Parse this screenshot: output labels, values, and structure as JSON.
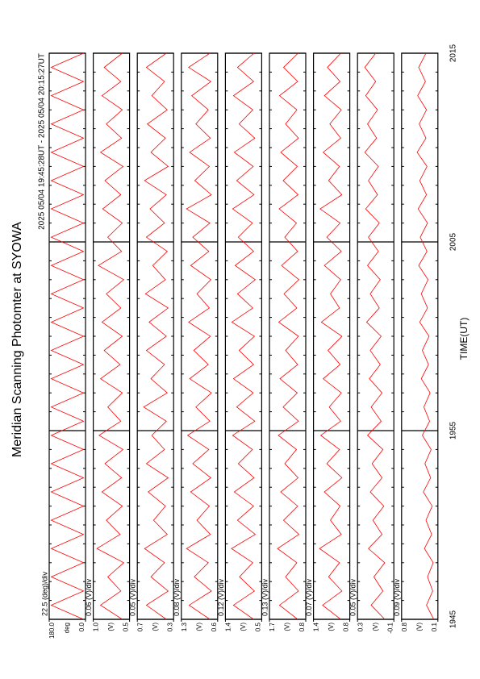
{
  "chart_data": {
    "type": "line",
    "title": "Meridian Scanning Photomter at SYOWA",
    "subtitle": "2025 05/04 19:45:28UT - 2025 05/04 20:15:27UT",
    "xlabel": "TIME(UT)",
    "xlim": [
      0,
      30
    ],
    "xticks": [
      {
        "value": 0,
        "label": "1945"
      },
      {
        "value": 10,
        "label": "1955"
      },
      {
        "value": 20,
        "label": "2005"
      },
      {
        "value": 30,
        "label": "2015"
      }
    ],
    "xminorticks": [
      0,
      1,
      2,
      3,
      4,
      5,
      6,
      7,
      8,
      9,
      10,
      11,
      12,
      13,
      14,
      15,
      16,
      17,
      18,
      19,
      20,
      21,
      22,
      23,
      24,
      25,
      26,
      27,
      28,
      29,
      30
    ],
    "x": [
      0,
      0.75,
      1.5,
      2.25,
      3,
      3.75,
      4.5,
      5.25,
      6,
      6.75,
      7.5,
      8.25,
      9,
      9.75,
      10.5,
      11.25,
      12,
      12.75,
      13.5,
      14.25,
      15,
      15.75,
      16.5,
      17.25,
      18,
      18.75,
      19.5,
      20.25,
      21,
      21.75,
      22.5,
      23.25,
      24,
      24.75,
      25.5,
      26.25,
      27,
      27.75,
      28.5,
      29.25,
      30
    ],
    "panels": [
      {
        "ylabel": "deg",
        "scale_label": "22.5 (deg)/div",
        "color": "#ff0000",
        "ylim": [
          0,
          180
        ],
        "yticks": [
          {
            "value": 0,
            "label": "0.0"
          },
          {
            "value": 180,
            "label": "180.0"
          }
        ],
        "values": [
          10,
          170,
          10,
          170,
          10,
          170,
          10,
          170,
          10,
          170,
          10,
          170,
          10,
          170,
          10,
          170,
          10,
          170,
          10,
          170,
          10,
          170,
          10,
          170,
          10,
          170,
          10,
          170,
          10,
          170,
          10,
          170,
          10,
          170,
          10,
          170,
          10,
          170,
          10,
          170,
          10
        ]
      },
      {
        "ylabel": "(V)",
        "scale_label": "0.06 (V)/div",
        "color": "#ff0000",
        "ylim": [
          0.5,
          1.0
        ],
        "yticks": [
          0.5,
          {
            "value": 1.0,
            "label": "1.0"
          }
        ],
        "values": [
          0.6,
          0.9,
          0.62,
          0.8,
          0.58,
          0.95,
          0.63,
          0.82,
          0.6,
          0.88,
          0.61,
          0.84,
          0.59,
          0.92,
          0.62,
          0.8,
          0.6,
          0.9,
          0.63,
          0.85,
          0.6,
          0.88,
          0.62,
          0.82,
          0.58,
          0.93,
          0.61,
          0.8,
          0.6,
          0.87,
          0.62,
          0.84,
          0.59,
          0.9,
          0.61,
          0.82,
          0.6,
          0.88,
          0.62,
          0.85,
          0.6
        ]
      },
      {
        "ylabel": "(V)",
        "scale_label": "0.05 (V)/div",
        "color": "#ff0000",
        "ylim": [
          0.3,
          0.7
        ],
        "yticks": [
          0.3,
          0.7
        ],
        "values": [
          0.38,
          0.6,
          0.36,
          0.55,
          0.4,
          0.62,
          0.37,
          0.52,
          0.39,
          0.58,
          0.36,
          0.6,
          0.4,
          0.54,
          0.38,
          0.63,
          0.37,
          0.55,
          0.4,
          0.6,
          0.38,
          0.57,
          0.36,
          0.61,
          0.39,
          0.53,
          0.37,
          0.6,
          0.4,
          0.56,
          0.38,
          0.62,
          0.36,
          0.55,
          0.39,
          0.59,
          0.37,
          0.54,
          0.4,
          0.6,
          0.38
        ]
      },
      {
        "ylabel": "(V)",
        "scale_label": "0.08 (V)/div",
        "color": "#ff0000",
        "ylim": [
          0.6,
          1.3
        ],
        "yticks": [
          0.6,
          1.3
        ],
        "values": [
          0.75,
          1.15,
          0.72,
          1.05,
          0.78,
          1.2,
          0.74,
          1.0,
          0.76,
          1.12,
          0.73,
          1.08,
          0.77,
          1.18,
          0.75,
          1.02,
          0.72,
          1.14,
          0.78,
          1.06,
          0.74,
          1.16,
          0.76,
          1.0,
          0.73,
          1.12,
          0.77,
          1.08,
          0.75,
          1.2,
          0.72,
          1.04,
          0.76,
          1.14,
          0.74,
          1.02,
          0.78,
          1.1,
          0.73,
          1.16,
          0.75
        ]
      },
      {
        "ylabel": "(V)",
        "scale_label": "0.12 (V)/div",
        "color": "#ff0000",
        "ylim": [
          0.5,
          1.4
        ],
        "yticks": [
          0.5,
          1.4
        ],
        "values": [
          0.7,
          1.2,
          0.68,
          1.05,
          0.72,
          1.25,
          0.66,
          1.1,
          0.7,
          1.18,
          0.69,
          1.08,
          0.73,
          1.22,
          0.67,
          1.12,
          0.71,
          1.2,
          0.7,
          1.06,
          0.68,
          1.24,
          0.72,
          1.1,
          0.66,
          1.16,
          0.7,
          1.08,
          0.73,
          1.22,
          0.69,
          1.12,
          0.71,
          1.18,
          0.67,
          1.06,
          0.72,
          1.2,
          0.7,
          1.1,
          0.69
        ]
      },
      {
        "ylabel": "(V)",
        "scale_label": "0.13 (V)/div",
        "color": "#ff0000",
        "ylim": [
          0.8,
          1.7
        ],
        "yticks": [
          0.8,
          1.7
        ],
        "values": [
          1.0,
          1.45,
          0.98,
          1.3,
          1.02,
          1.5,
          0.97,
          1.35,
          1.0,
          1.42,
          0.99,
          1.32,
          1.03,
          1.48,
          0.98,
          1.36,
          1.01,
          1.44,
          1.0,
          1.3,
          0.98,
          1.47,
          1.02,
          1.34,
          0.97,
          1.4,
          1.0,
          1.32,
          1.03,
          1.46,
          0.99,
          1.36,
          1.01,
          1.42,
          0.98,
          1.3,
          1.02,
          1.45,
          1.0,
          1.35,
          0.99
        ]
      },
      {
        "ylabel": "(V)",
        "scale_label": "0.07 (V)/div",
        "color": "#ff0000",
        "ylim": [
          0.8,
          1.4
        ],
        "yticks": [
          0.8,
          1.4
        ],
        "values": [
          0.95,
          1.25,
          0.93,
          1.15,
          0.97,
          1.3,
          0.94,
          1.12,
          0.96,
          1.22,
          0.93,
          1.18,
          0.97,
          1.28,
          0.95,
          1.14,
          0.94,
          1.24,
          0.96,
          1.16,
          0.93,
          1.27,
          0.97,
          1.12,
          0.95,
          1.22,
          0.94,
          1.18,
          0.96,
          1.29,
          0.93,
          1.15,
          0.97,
          1.24,
          0.95,
          1.13,
          0.94,
          1.22,
          0.96,
          1.17,
          0.95
        ]
      },
      {
        "ylabel": "(V)",
        "scale_label": "0.05 (V)/div",
        "color": "#ff0000",
        "ylim": [
          -0.1,
          0.3
        ],
        "yticks": [
          -0.1,
          0.3
        ],
        "values": [
          0.0,
          0.15,
          0.02,
          0.12,
          0.0,
          0.18,
          0.03,
          0.13,
          0.01,
          0.16,
          0.03,
          0.14,
          0.02,
          0.19,
          0.04,
          0.15,
          0.03,
          0.17,
          0.05,
          0.16,
          0.04,
          0.2,
          0.06,
          0.16,
          0.05,
          0.19,
          0.07,
          0.18,
          0.06,
          0.21,
          0.08,
          0.18,
          0.07,
          0.22,
          0.09,
          0.19,
          0.08,
          0.21,
          0.1,
          0.22,
          0.1
        ]
      },
      {
        "ylabel": "(V)",
        "scale_label": "0.09 (V)/div",
        "color": "#ff0000",
        "ylim": [
          0.1,
          0.8
        ],
        "yticks": [
          0.1,
          0.8
        ],
        "values": [
          0.18,
          0.32,
          0.2,
          0.3,
          0.19,
          0.36,
          0.22,
          0.33,
          0.21,
          0.38,
          0.24,
          0.35,
          0.23,
          0.4,
          0.26,
          0.37,
          0.25,
          0.42,
          0.28,
          0.4,
          0.27,
          0.45,
          0.3,
          0.42,
          0.29,
          0.47,
          0.31,
          0.44,
          0.3,
          0.48,
          0.32,
          0.45,
          0.31,
          0.5,
          0.33,
          0.46,
          0.32,
          0.49,
          0.34,
          0.47,
          0.33
        ]
      }
    ]
  }
}
